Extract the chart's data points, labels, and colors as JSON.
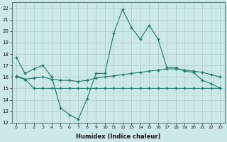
{
  "title": "",
  "xlabel": "Humidex (Indice chaleur)",
  "ylabel": "",
  "bg_color": "#cce8e8",
  "grid_color": "#aacccc",
  "line_color": "#1a7a6e",
  "xlim": [
    -0.5,
    23.5
  ],
  "ylim": [
    12,
    22.5
  ],
  "yticks": [
    12,
    13,
    14,
    15,
    16,
    17,
    18,
    19,
    20,
    21,
    22
  ],
  "xticks": [
    0,
    1,
    2,
    3,
    4,
    5,
    6,
    7,
    8,
    9,
    10,
    11,
    12,
    13,
    14,
    15,
    16,
    17,
    18,
    19,
    20,
    21,
    22,
    23
  ],
  "xtick_labels": [
    "0",
    "1",
    "2",
    "3",
    "4",
    "5",
    "6",
    "7",
    "8",
    "9",
    "10",
    "11",
    "12",
    "13",
    "14",
    "15",
    "16",
    "17",
    "18",
    "19",
    "20",
    "21",
    "22",
    "23"
  ],
  "line1_x": [
    0,
    1,
    2,
    3,
    4,
    5,
    6,
    7,
    8,
    9,
    10,
    11,
    12,
    13,
    14,
    15,
    16,
    17,
    18,
    19,
    20,
    21,
    22,
    23
  ],
  "line1_y": [
    17.7,
    16.3,
    16.7,
    17.0,
    16.0,
    13.3,
    12.7,
    12.3,
    14.1,
    16.3,
    16.3,
    19.8,
    21.9,
    20.3,
    19.3,
    20.5,
    19.3,
    16.8,
    16.8,
    16.5,
    16.4,
    15.7,
    15.4,
    15.0
  ],
  "line2_x": [
    0,
    1,
    2,
    3,
    4,
    5,
    6,
    7,
    8,
    9,
    10,
    11,
    12,
    13,
    14,
    15,
    16,
    17,
    18,
    19,
    20,
    21,
    22,
    23
  ],
  "line2_y": [
    16.1,
    15.8,
    15.9,
    16.0,
    15.8,
    15.7,
    15.7,
    15.6,
    15.7,
    15.9,
    16.0,
    16.1,
    16.2,
    16.3,
    16.4,
    16.5,
    16.6,
    16.7,
    16.7,
    16.6,
    16.5,
    16.4,
    16.2,
    16.0
  ],
  "line3_x": [
    0,
    1,
    2,
    3,
    4,
    5,
    6,
    7,
    8,
    9,
    10,
    11,
    12,
    13,
    14,
    15,
    16,
    17,
    18,
    19,
    20,
    21,
    22,
    23
  ],
  "line3_y": [
    16.0,
    15.8,
    15.0,
    15.0,
    15.0,
    15.0,
    15.0,
    15.0,
    15.0,
    15.0,
    15.0,
    15.0,
    15.0,
    15.0,
    15.0,
    15.0,
    15.0,
    15.0,
    15.0,
    15.0,
    15.0,
    15.0,
    15.0,
    15.0
  ],
  "marker": "+",
  "marker_size": 3.0,
  "linewidth": 0.8
}
